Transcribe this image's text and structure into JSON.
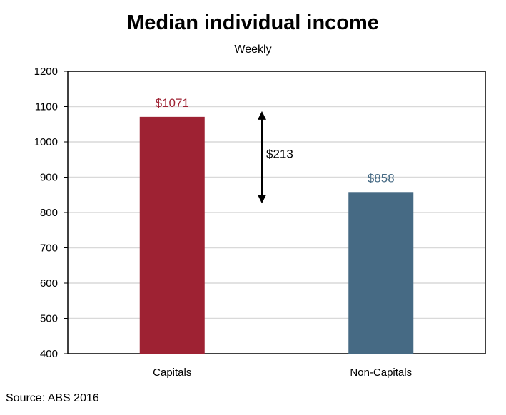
{
  "chart_data": {
    "type": "bar",
    "title": "Median individual income",
    "subtitle": "Weekly",
    "categories": [
      "Capitals",
      "Non-Capitals"
    ],
    "values": [
      1071,
      858
    ],
    "data_labels": [
      "$1071",
      "$858"
    ],
    "bar_colors": [
      "#9e2233",
      "#466a84"
    ],
    "ylim": [
      400,
      1200
    ],
    "yticks": [
      400,
      500,
      600,
      700,
      800,
      900,
      1000,
      1100,
      1200
    ],
    "grid": true,
    "legend": "none",
    "annotation": {
      "text": "$213",
      "from": 1071,
      "to": 858
    }
  },
  "source": "Source: ABS 2016"
}
